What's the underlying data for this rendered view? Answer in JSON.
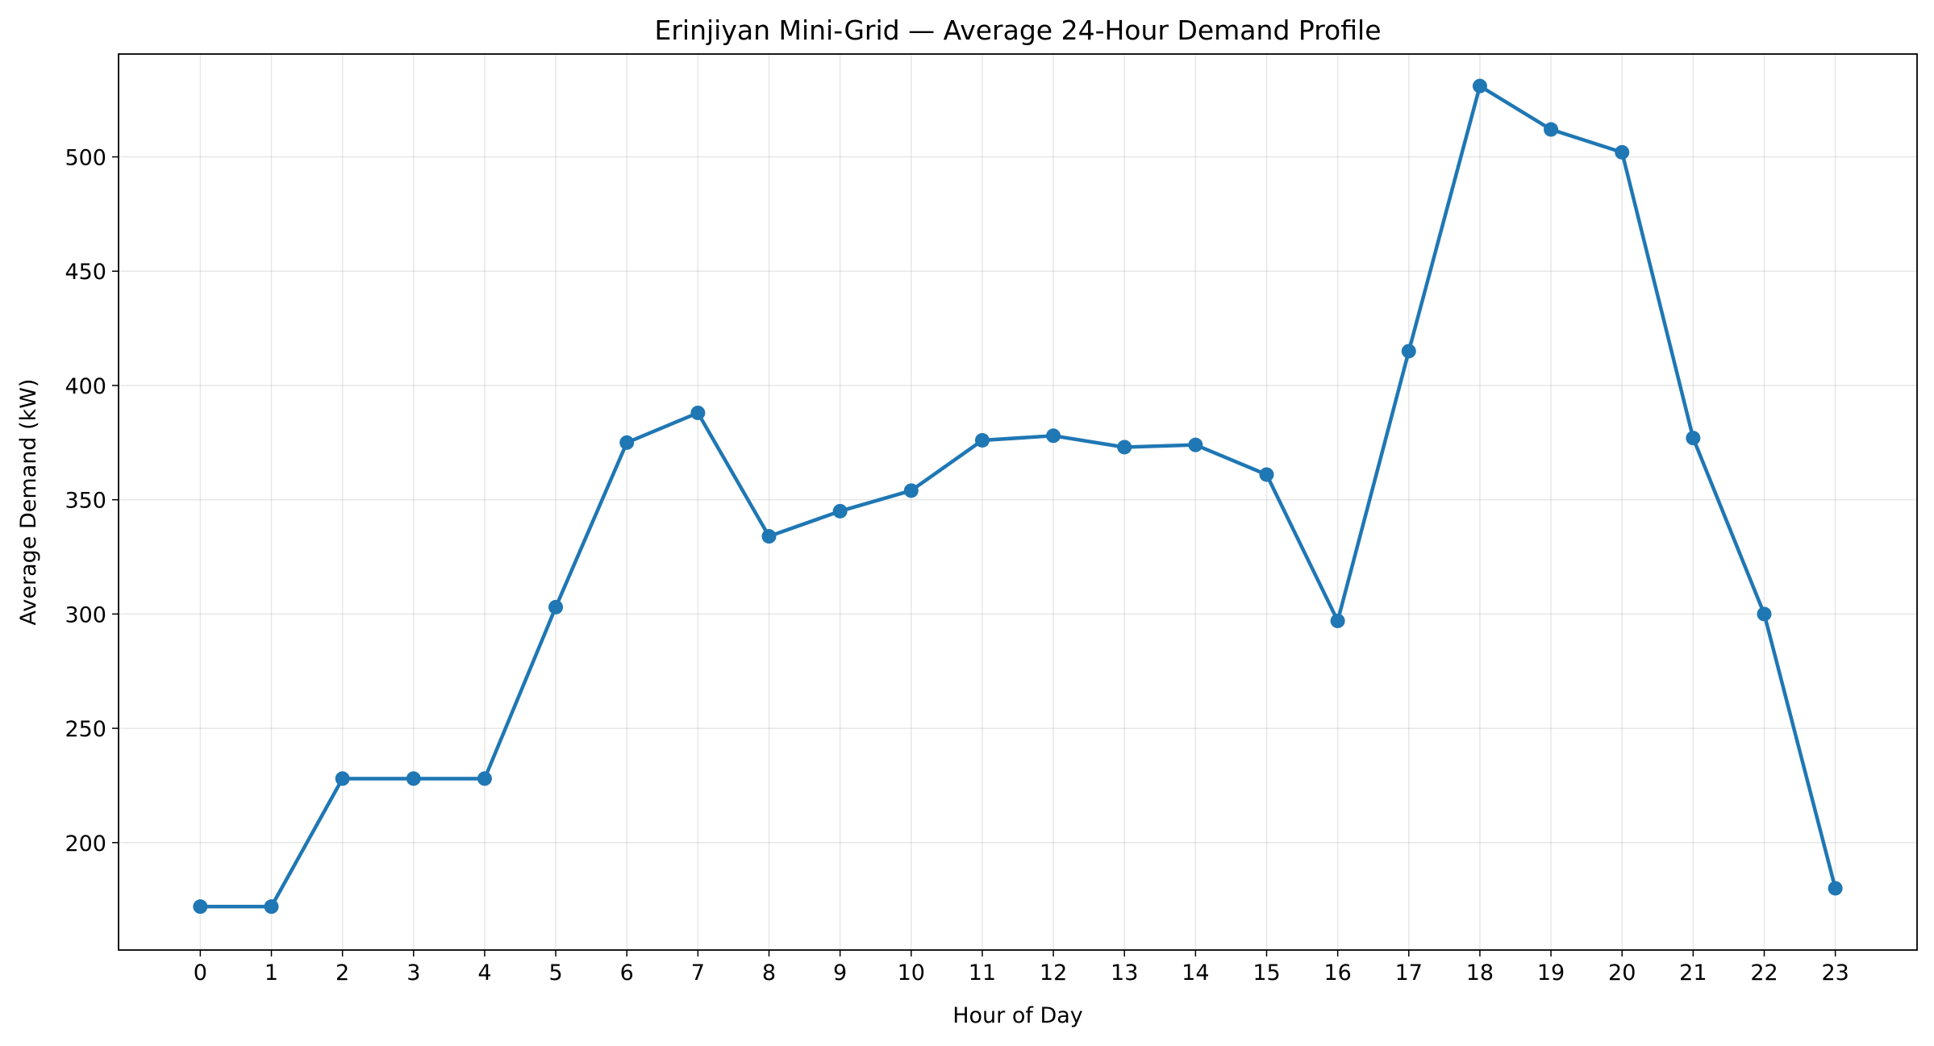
{
  "chart_data": {
    "type": "line",
    "title": "Erinjiyan Mini-Grid — Average 24-Hour Demand Profile",
    "xlabel": "Hour of Day",
    "ylabel": "Average Demand (kW)",
    "x": [
      0,
      1,
      2,
      3,
      4,
      5,
      6,
      7,
      8,
      9,
      10,
      11,
      12,
      13,
      14,
      15,
      16,
      17,
      18,
      19,
      20,
      21,
      22,
      23
    ],
    "x_tick_labels": [
      "0",
      "1",
      "2",
      "3",
      "4",
      "5",
      "6",
      "7",
      "8",
      "9",
      "10",
      "11",
      "12",
      "13",
      "14",
      "15",
      "16",
      "17",
      "18",
      "19",
      "20",
      "21",
      "22",
      "23"
    ],
    "y_ticks": [
      200,
      250,
      300,
      350,
      400,
      450,
      500
    ],
    "y_tick_labels": [
      "200",
      "250",
      "300",
      "350",
      "400",
      "450",
      "500"
    ],
    "xlim": [
      -1.15,
      24.15
    ],
    "ylim": [
      153,
      545
    ],
    "grid": true,
    "legend": "none",
    "series": [
      {
        "values": [
          172,
          172,
          228,
          228,
          228,
          303,
          375,
          388,
          334,
          345,
          354,
          376,
          378,
          373,
          374,
          361,
          297,
          415,
          531,
          512,
          502,
          377,
          300,
          180
        ],
        "color": "#1f77b4",
        "marker": "circle"
      }
    ]
  }
}
